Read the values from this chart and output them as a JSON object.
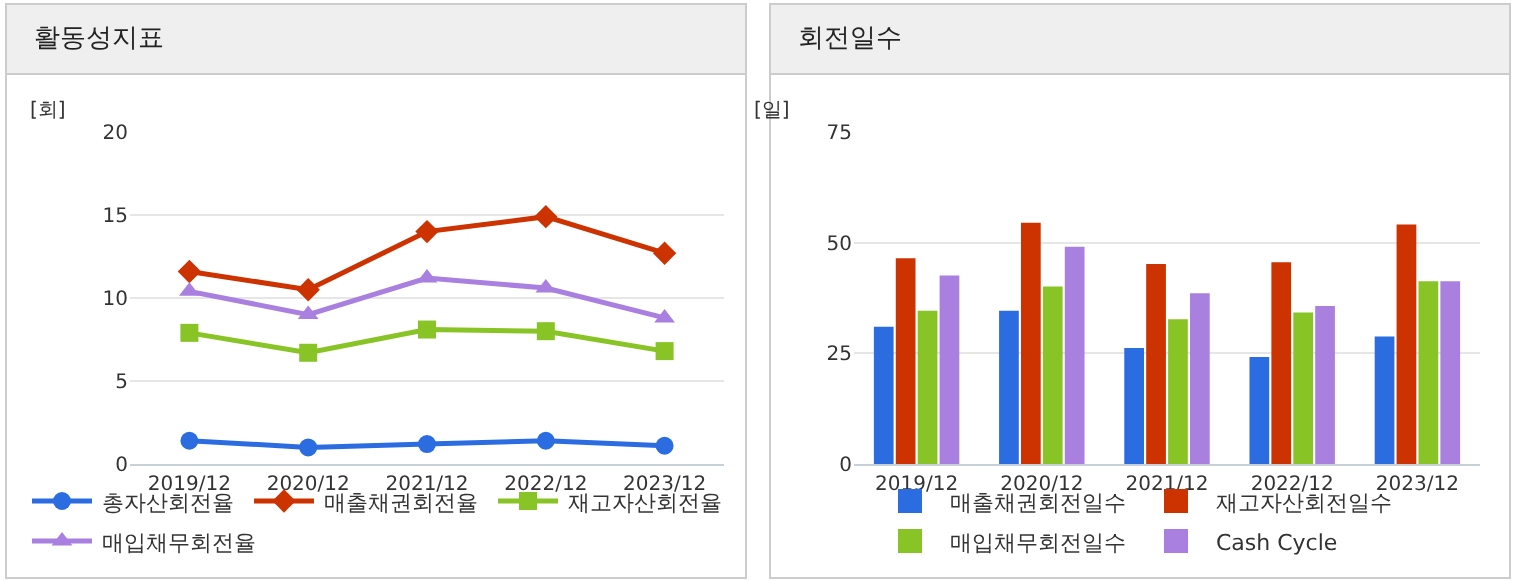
{
  "chart_data": [
    {
      "type": "line",
      "title": "활동성지표",
      "ylabel": "[회]",
      "categories": [
        "2019/12",
        "2020/12",
        "2021/12",
        "2022/12",
        "2023/12"
      ],
      "ylim": [
        0,
        20
      ],
      "yticks": [
        0,
        5,
        10,
        15,
        20
      ],
      "grid": "y",
      "legend": "bottom",
      "line_style": "solid",
      "series": [
        {
          "name": "총자산회전율",
          "color": "#2b6de0",
          "marker": "circle",
          "values": [
            1.4,
            1.0,
            1.2,
            1.4,
            1.1
          ]
        },
        {
          "name": "매출채권회전율",
          "color": "#cc3300",
          "marker": "diamond",
          "values": [
            11.6,
            10.5,
            14.0,
            14.9,
            12.7
          ]
        },
        {
          "name": "재고자산회전율",
          "color": "#88c425",
          "marker": "square",
          "values": [
            7.9,
            6.7,
            8.1,
            8.0,
            6.8
          ]
        },
        {
          "name": "매입채무회전율",
          "color": "#a97fe0",
          "marker": "triangle",
          "values": [
            10.4,
            9.0,
            11.2,
            10.6,
            8.8
          ]
        }
      ]
    },
    {
      "type": "bar",
      "title": "회전일수",
      "ylabel": "[일]",
      "categories": [
        "2019/12",
        "2020/12",
        "2021/12",
        "2022/12",
        "2023/12"
      ],
      "ylim": [
        0,
        75
      ],
      "yticks": [
        0,
        25,
        50,
        75
      ],
      "grid": "y",
      "legend": "bottom",
      "series": [
        {
          "name": "매출채권회전일수",
          "color": "#2b6de0",
          "values": [
            31.0,
            34.6,
            26.2,
            24.2,
            28.8
          ]
        },
        {
          "name": "재고자산회전일수",
          "color": "#cc3300",
          "values": [
            46.5,
            54.5,
            45.2,
            45.6,
            54.1
          ]
        },
        {
          "name": "매입채무회전일수",
          "color": "#88c425",
          "values": [
            34.6,
            40.1,
            32.7,
            34.2,
            41.3
          ]
        },
        {
          "name": "Cash Cycle",
          "color": "#a97fe0",
          "values": [
            42.6,
            49.1,
            38.6,
            35.7,
            41.3
          ]
        }
      ]
    }
  ]
}
